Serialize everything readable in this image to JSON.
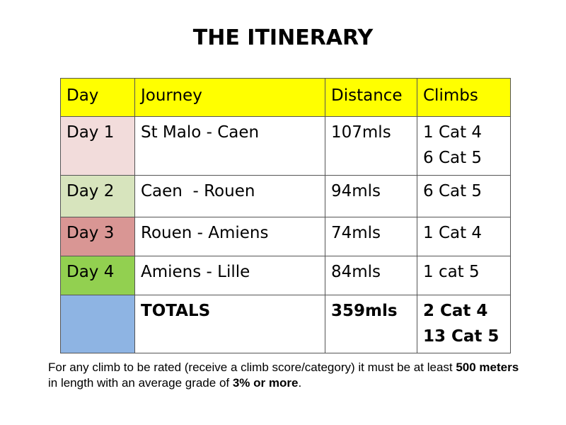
{
  "title": "THE ITINERARY",
  "table": {
    "headers": {
      "day": "Day",
      "journey": "Journey",
      "distance": "Distance",
      "climbs": "Climbs"
    },
    "rows": [
      {
        "day": "Day 1",
        "journey": "St Malo - Caen",
        "distance": "107mls",
        "climbs_line1": "1 Cat 4",
        "climbs_line2": "6 Cat 5",
        "day_color": "#f2dcdb"
      },
      {
        "day": "Day 2",
        "journey": "Caen  - Rouen",
        "distance": "94mls",
        "climbs_line1": "6 Cat 5",
        "climbs_line2": "",
        "day_color": "#d7e4bd"
      },
      {
        "day": "Day 3",
        "journey": "Rouen - Amiens",
        "distance": "74mls",
        "climbs_line1": "1 Cat 4",
        "climbs_line2": "",
        "day_color": "#d99694"
      },
      {
        "day": "Day 4",
        "journey": "Amiens - Lille",
        "distance": "84mls",
        "climbs_line1": "1 cat 5",
        "climbs_line2": "",
        "day_color": "#92d050"
      }
    ],
    "totals": {
      "day": "",
      "journey": "TOTALS",
      "distance": "359mls",
      "climbs_line1": "2 Cat 4",
      "climbs_line2": "13 Cat 5",
      "day_color": "#8eb4e3"
    },
    "header_color": "#ffff00"
  },
  "note": {
    "part1": "For any climb to be rated (receive a climb score/category) it must be at least ",
    "bold1": "500 meters",
    "part2": " in length with an average grade of ",
    "bold2": "3% or more",
    "part3": "."
  }
}
